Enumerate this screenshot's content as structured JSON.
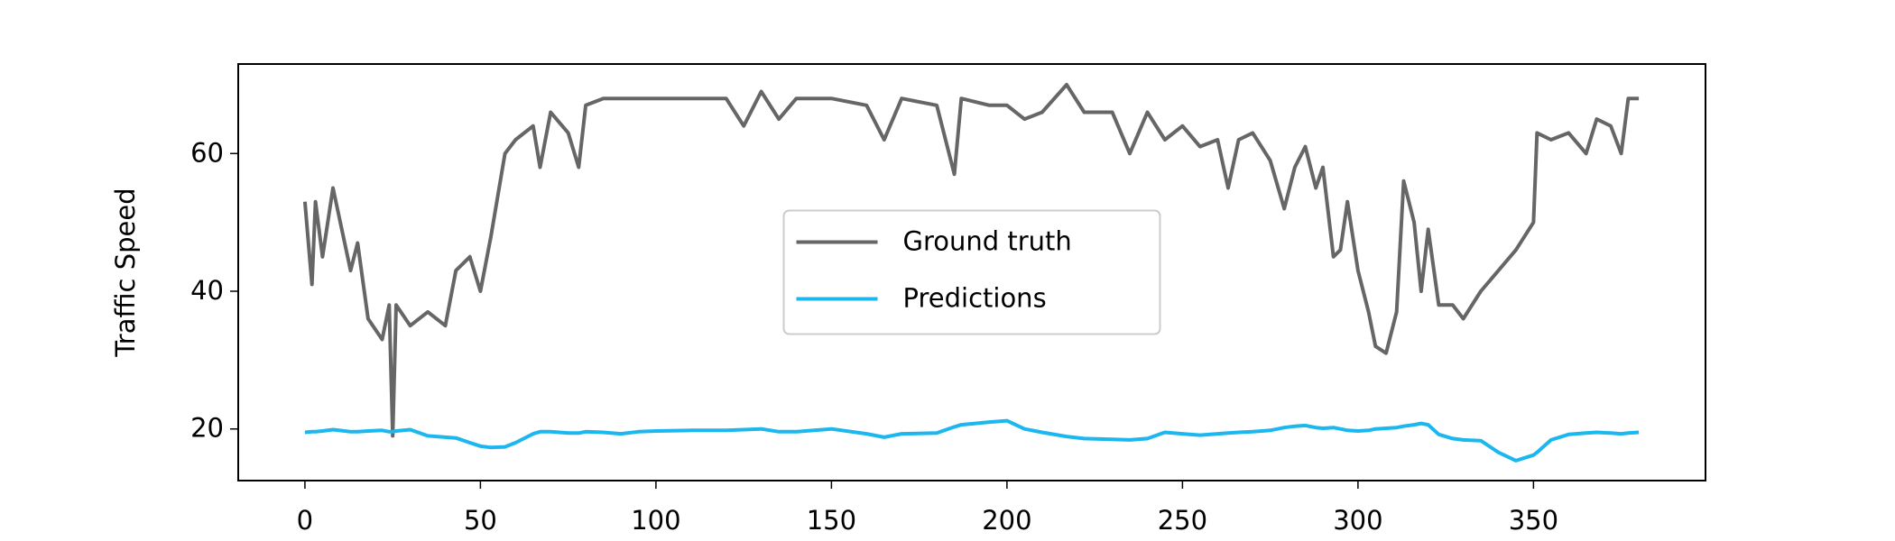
{
  "chart_data": {
    "type": "line",
    "ylabel": "Traffic Speed",
    "x": [
      0,
      2,
      3,
      5,
      8,
      13,
      15,
      18,
      22,
      24,
      25,
      26,
      30,
      35,
      40,
      43,
      47,
      50,
      53,
      57,
      60,
      65,
      67,
      70,
      75,
      78,
      80,
      85,
      90,
      95,
      100,
      110,
      120,
      125,
      130,
      135,
      140,
      150,
      160,
      165,
      170,
      180,
      185,
      187,
      195,
      200,
      205,
      210,
      217,
      222,
      230,
      235,
      240,
      245,
      250,
      255,
      260,
      263,
      266,
      270,
      275,
      279,
      282,
      285,
      288,
      290,
      293,
      295,
      297,
      300,
      303,
      305,
      308,
      311,
      313,
      316,
      318,
      320,
      323,
      327,
      330,
      335,
      340,
      345,
      350,
      351,
      355,
      360,
      365,
      368,
      372,
      375,
      377,
      380
    ],
    "series": [
      {
        "name": "Ground truth",
        "color": "#666666",
        "values": [
          53,
          41,
          53,
          45,
          55,
          43,
          47,
          36,
          33,
          38,
          19,
          38,
          35,
          37,
          35,
          43,
          45,
          40,
          48,
          60,
          62,
          64,
          58,
          66,
          63,
          58,
          67,
          68,
          68,
          68,
          68,
          68,
          68,
          64,
          69,
          65,
          68,
          68,
          67,
          62,
          68,
          67,
          57,
          68,
          67,
          67,
          65,
          66,
          70,
          66,
          66,
          60,
          66,
          62,
          64,
          61,
          62,
          55,
          62,
          63,
          59,
          52,
          58,
          61,
          55,
          58,
          45,
          46,
          53,
          43,
          37,
          32,
          31,
          37,
          56,
          50,
          40,
          49,
          38,
          38,
          36,
          40,
          43,
          46,
          50,
          63,
          62,
          63,
          60,
          65,
          64,
          60,
          68,
          68
        ]
      },
      {
        "name": "Predictions",
        "color": "#1cb7ee",
        "values": [
          19.5,
          19.6,
          19.6,
          19.7,
          19.9,
          19.6,
          19.6,
          19.7,
          19.8,
          19.6,
          19.6,
          19.7,
          19.9,
          19.0,
          18.8,
          18.7,
          18.0,
          17.5,
          17.3,
          17.4,
          18.0,
          19.3,
          19.6,
          19.6,
          19.4,
          19.4,
          19.6,
          19.5,
          19.3,
          19.6,
          19.7,
          19.8,
          19.8,
          19.9,
          20.0,
          19.6,
          19.6,
          20.0,
          19.3,
          18.8,
          19.3,
          19.4,
          20.3,
          20.6,
          21.0,
          21.2,
          20.0,
          19.5,
          18.9,
          18.6,
          18.5,
          18.4,
          18.6,
          19.5,
          19.3,
          19.1,
          19.3,
          19.4,
          19.5,
          19.6,
          19.8,
          20.2,
          20.4,
          20.5,
          20.2,
          20.1,
          20.2,
          20.0,
          19.8,
          19.7,
          19.8,
          20.0,
          20.1,
          20.2,
          20.4,
          20.6,
          20.8,
          20.6,
          19.2,
          18.6,
          18.4,
          18.3,
          16.6,
          15.4,
          16.2,
          16.6,
          18.4,
          19.2,
          19.4,
          19.5,
          19.4,
          19.3,
          19.4,
          19.5
        ]
      }
    ],
    "xlim": [
      -19,
      399
    ],
    "ylim": [
      12.5,
      73
    ],
    "xticks": [
      0,
      50,
      100,
      150,
      200,
      250,
      300,
      350
    ],
    "yticks": [
      20,
      40,
      60
    ],
    "grid": false,
    "legend": "center"
  }
}
